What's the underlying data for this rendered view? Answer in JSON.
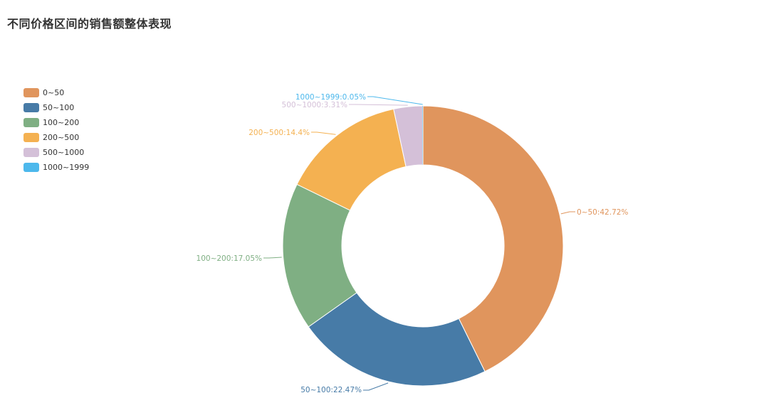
{
  "title": "不同价格区间的销售额整体表现",
  "chart_data": {
    "type": "pie",
    "style": "donut",
    "title": "不同价格区间的销售额整体表现",
    "legend_position": "left",
    "slices": [
      {
        "name": "0~50",
        "value": 42.72,
        "label": "0~50:42.72%",
        "color": "#e0955d"
      },
      {
        "name": "50~100",
        "value": 22.47,
        "label": "50~100:22.47%",
        "color": "#477ba7"
      },
      {
        "name": "100~200",
        "value": 17.05,
        "label": "100~200:17.05%",
        "color": "#7faf83"
      },
      {
        "name": "200~500",
        "value": 14.4,
        "label": "200~500:14.4%",
        "color": "#f4b151"
      },
      {
        "name": "500~1000",
        "value": 3.31,
        "label": "500~1000:3.31%",
        "color": "#d4c0d8"
      },
      {
        "name": "1000~1999",
        "value": 0.05,
        "label": "1000~1999:0.05%",
        "color": "#4db8ec"
      }
    ]
  }
}
